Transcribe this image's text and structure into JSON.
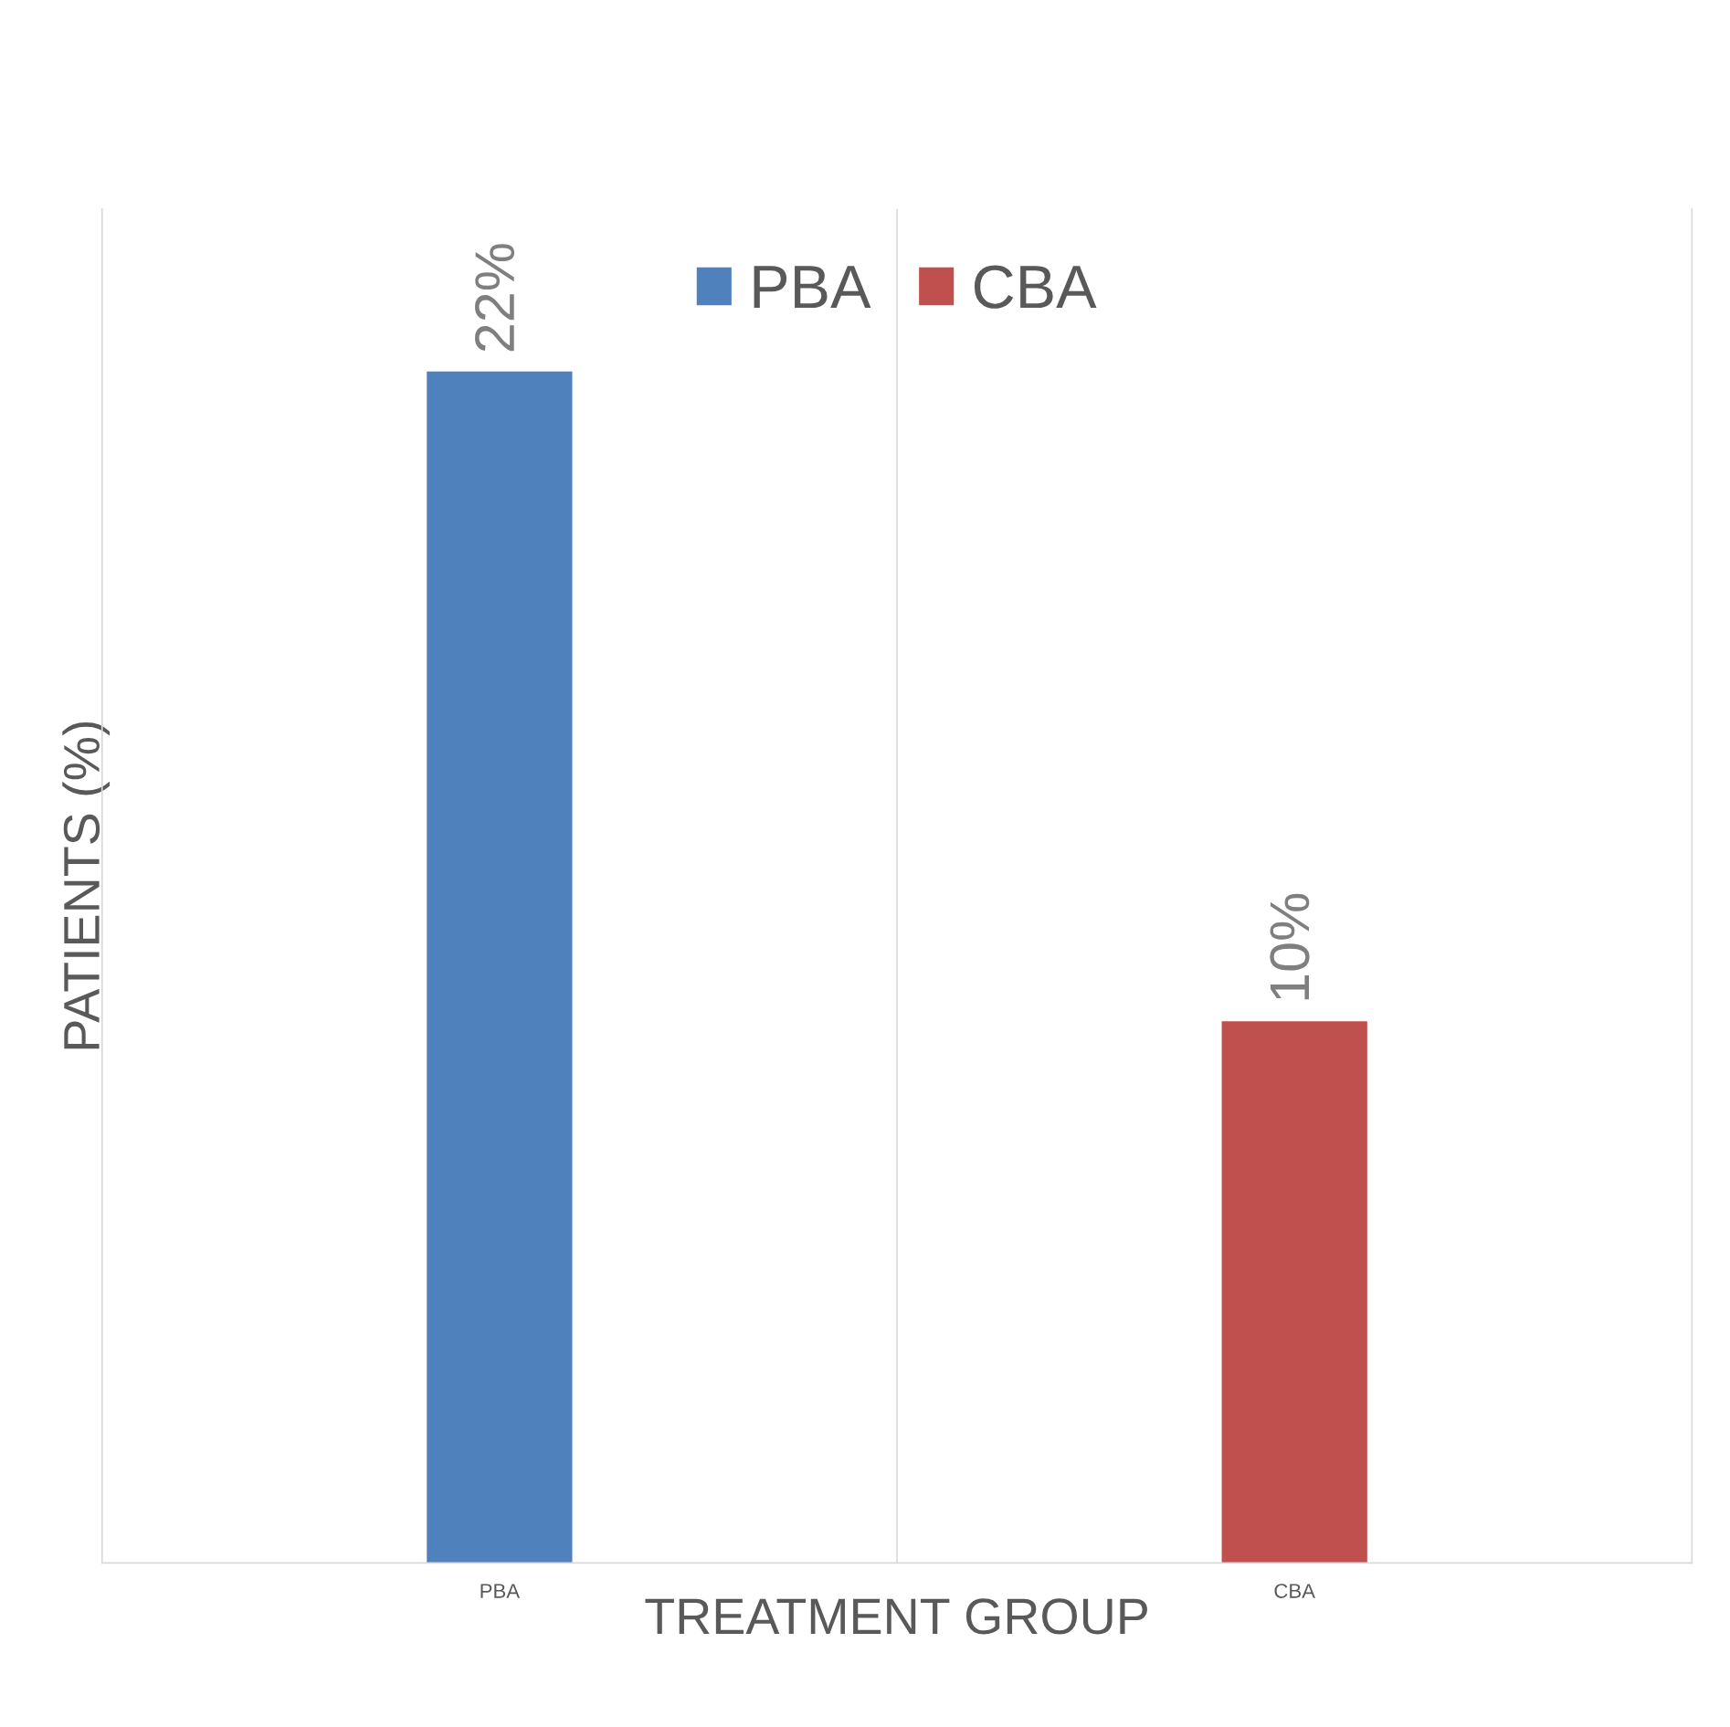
{
  "chart_data": {
    "type": "bar",
    "xlabel": "TREATMENT GROUP",
    "ylabel": "PATIENTS (%)",
    "categories": [
      "PBA",
      "CBA"
    ],
    "series": [
      {
        "name": "PBA",
        "color": "#4f81bd",
        "values": [
          22,
          null
        ],
        "value_labels": [
          "22%",
          null
        ]
      },
      {
        "name": "CBA",
        "color": "#c0504d",
        "values": [
          null,
          10
        ],
        "value_labels": [
          null,
          "10%"
        ]
      }
    ],
    "ylim": [
      0,
      25
    ],
    "tick_labels": "x",
    "grid": "x",
    "legend": "top"
  }
}
